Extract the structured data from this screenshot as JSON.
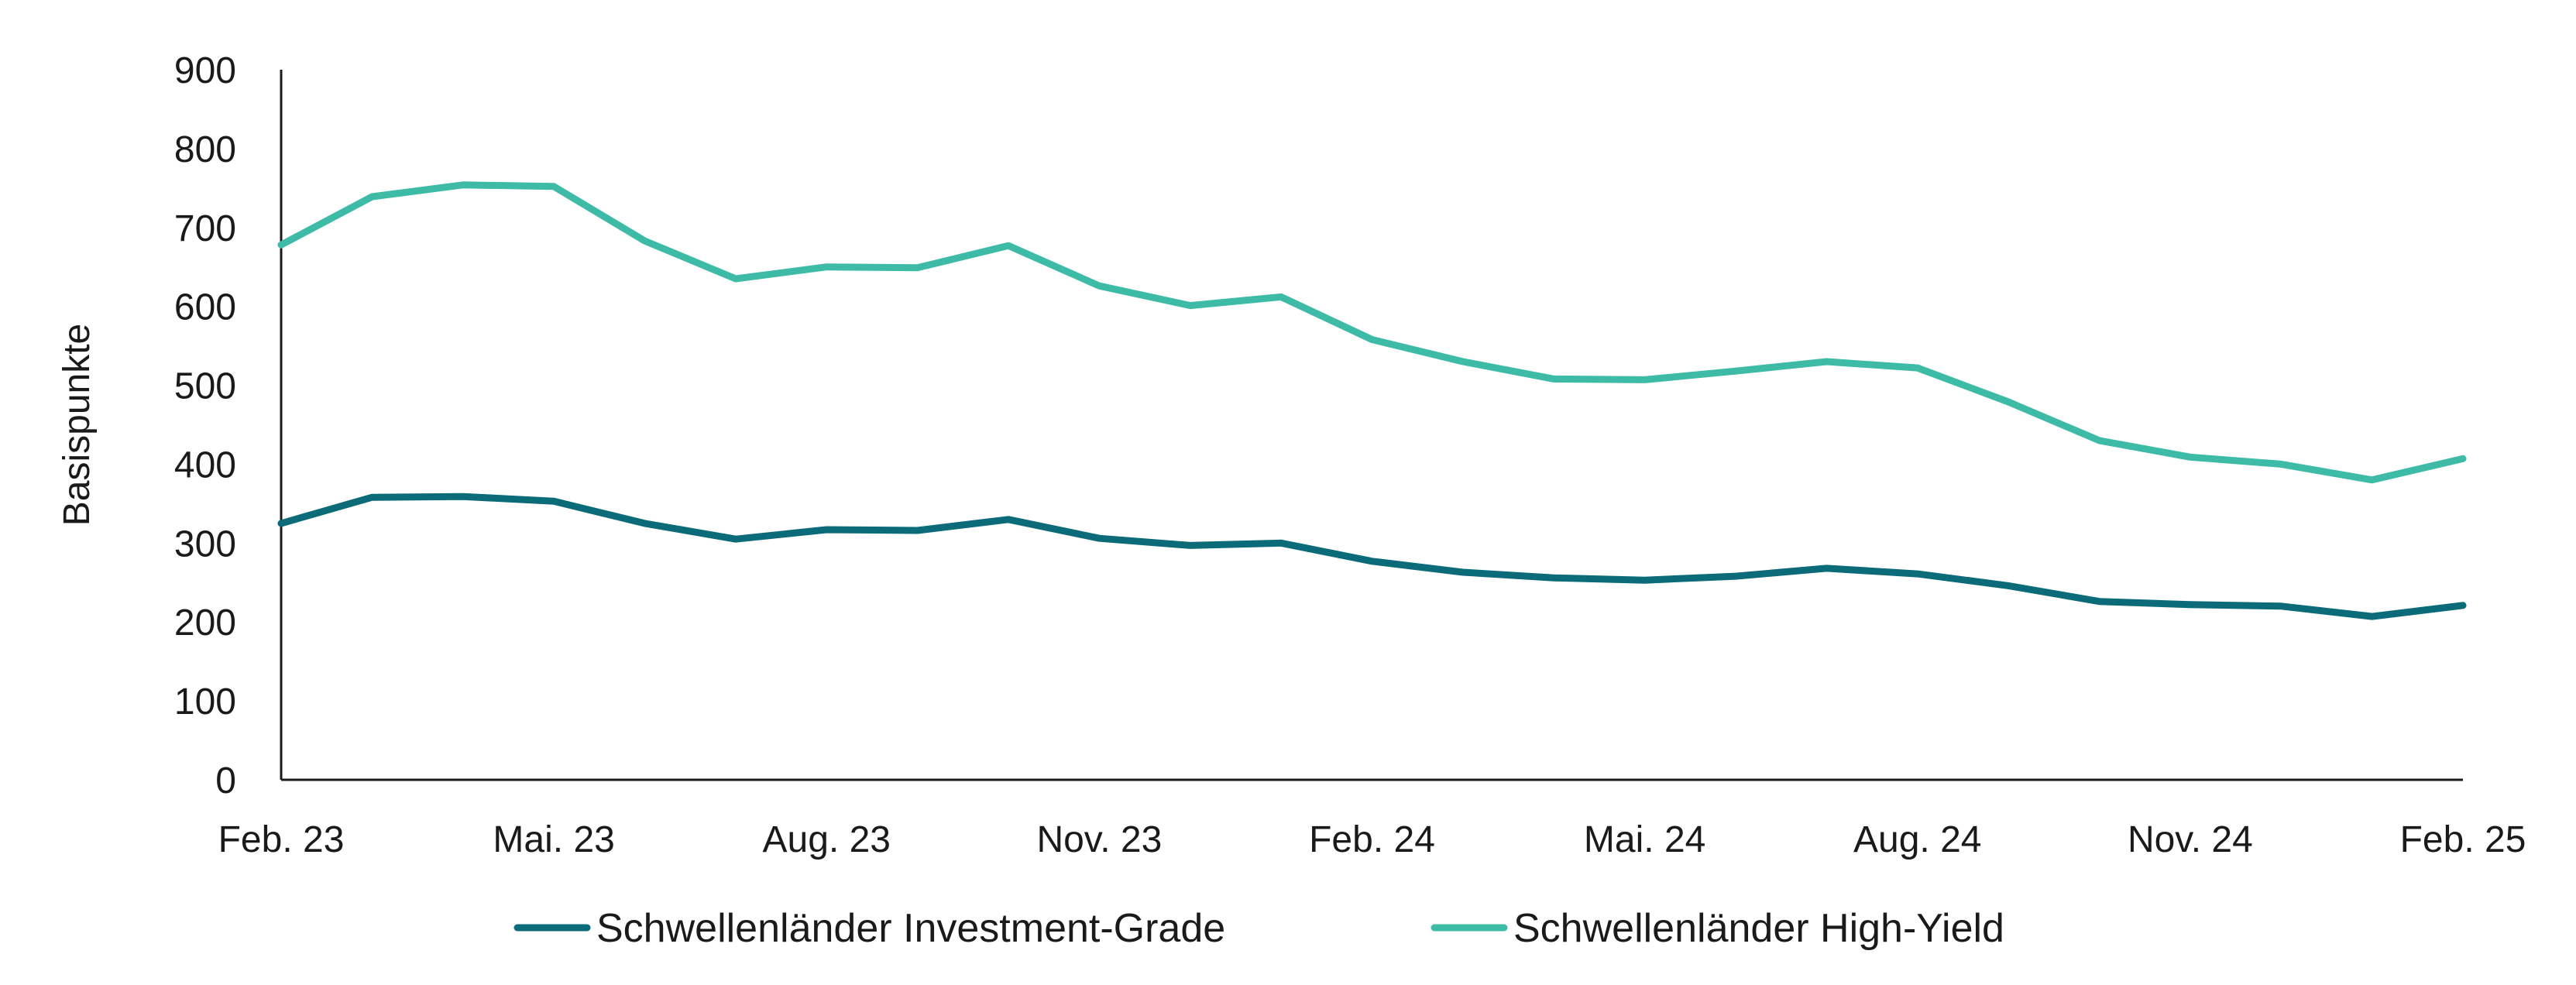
{
  "chart_data": {
    "type": "line",
    "title": "",
    "xlabel": "",
    "ylabel": "Basispunkte",
    "ylim": [
      0,
      900
    ],
    "yticks": [
      "0",
      "100",
      "200",
      "300",
      "400",
      "500",
      "600",
      "700",
      "800",
      "900"
    ],
    "x": [
      "Feb. 23",
      "Mrz. 23",
      "Apr. 23",
      "Mai. 23",
      "Jun. 23",
      "Jul. 23",
      "Aug. 23",
      "Sep. 23",
      "Okt. 23",
      "Nov. 23",
      "Dez. 23",
      "Jan. 24",
      "Feb. 24",
      "Mrz. 24",
      "Apr. 24",
      "Mai. 24",
      "Jun. 24",
      "Jul. 24",
      "Aug. 24",
      "Sep. 24",
      "Okt. 24",
      "Nov. 24",
      "Dez. 24",
      "Jan. 25",
      "Feb. 25"
    ],
    "xtick_labels": [
      "Feb. 23",
      "Mai. 23",
      "Aug. 23",
      "Nov. 23",
      "Feb. 24",
      "Mai. 24",
      "Aug. 24",
      "Nov. 24",
      "Feb. 25"
    ],
    "grid": false,
    "legend_position": "bottom",
    "series": [
      {
        "name": "Schwellenländer Investment-Grade",
        "color": "#0b6b78",
        "values": [
          325,
          358,
          359,
          353,
          325,
          305,
          317,
          316,
          330,
          306,
          297,
          300,
          277,
          263,
          256,
          253,
          258,
          268,
          261,
          246,
          226,
          222,
          220,
          207,
          221
        ]
      },
      {
        "name": "Schwellenländer High-Yield",
        "color": "#3dbba6",
        "values": [
          678,
          739,
          754,
          752,
          683,
          635,
          650,
          649,
          677,
          626,
          601,
          612,
          558,
          530,
          508,
          507,
          518,
          530,
          522,
          479,
          430,
          409,
          400,
          380,
          407
        ]
      }
    ]
  }
}
